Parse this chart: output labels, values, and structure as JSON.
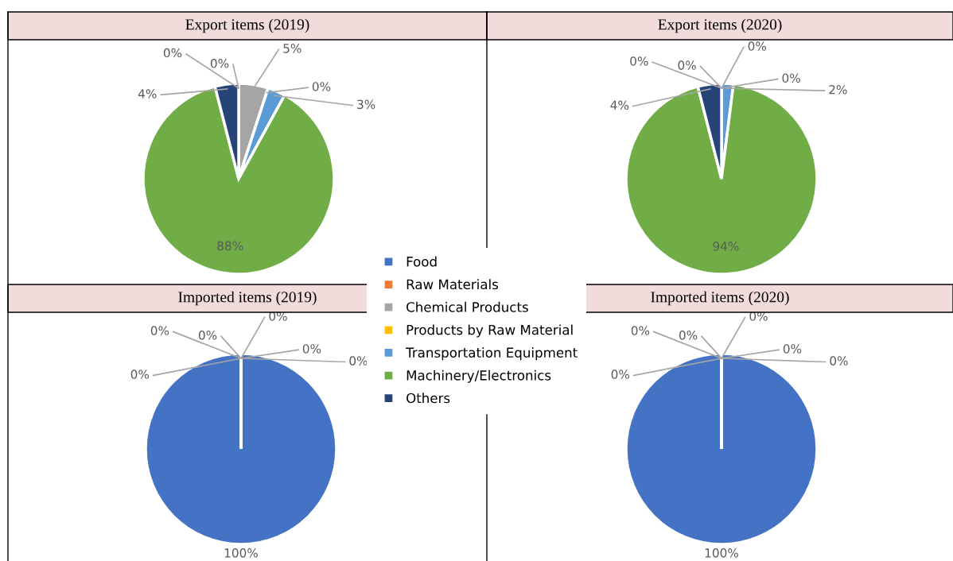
{
  "chart_data": [
    {
      "type": "pie",
      "title": "Export items (2019)",
      "categories": [
        "Food",
        "Raw Materials",
        "Chemical Products",
        "Products by Raw Material",
        "Transportation Equipment",
        "Machinery/Electronics",
        "Others"
      ],
      "values": [
        0,
        0,
        5,
        0,
        3,
        88,
        4
      ],
      "value_labels": [
        "0%",
        "0%",
        "5%",
        "0%",
        "3%",
        "88%",
        "4%"
      ],
      "colors": [
        "#4472c4",
        "#ed7d31",
        "#a5a5a5",
        "#ffc000",
        "#5b9bd5",
        "#70ad47",
        "#264478"
      ],
      "legend": "right"
    },
    {
      "type": "pie",
      "title": "Export items (2020)",
      "values": [
        0,
        0,
        0,
        0,
        2,
        94,
        4
      ],
      "value_labels": [
        "0%",
        "0%",
        "0%",
        "0%",
        "2%",
        "94%",
        "4%"
      ],
      "colors": [
        "#4472c4",
        "#ed7d31",
        "#a5a5a5",
        "#ffc000",
        "#5b9bd5",
        "#70ad47",
        "#264478"
      ]
    },
    {
      "type": "pie",
      "title": "Imported items (2019)",
      "values": [
        100,
        0,
        0,
        0,
        0,
        0,
        0
      ],
      "value_labels": [
        "100%",
        "0%",
        "0%",
        "0%",
        "0%",
        "0%",
        "0%"
      ],
      "colors": [
        "#4472c4",
        "#ed7d31",
        "#a5a5a5",
        "#ffc000",
        "#5b9bd5",
        "#70ad47",
        "#264478"
      ]
    },
    {
      "type": "pie",
      "title": "Imported items (2020)",
      "values": [
        100,
        0,
        0,
        0,
        0,
        0,
        0
      ],
      "value_labels": [
        "100%",
        "0%",
        "0%",
        "0%",
        "0%",
        "0%",
        "0%"
      ],
      "colors": [
        "#4472c4",
        "#ed7d31",
        "#a5a5a5",
        "#ffc000",
        "#5b9bd5",
        "#70ad47",
        "#264478"
      ]
    }
  ]
}
